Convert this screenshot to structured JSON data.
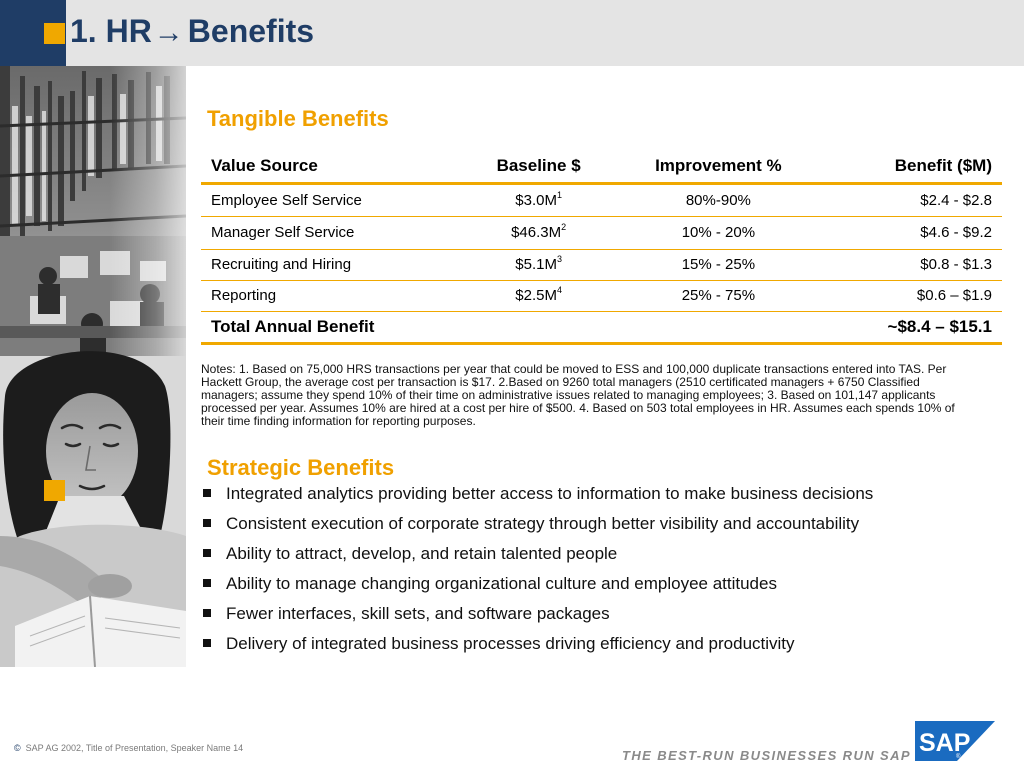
{
  "slide": {
    "number": "1.",
    "title_left": "HR",
    "arrow": "→",
    "title_right": "Benefits"
  },
  "tangible": {
    "heading": "Tangible Benefits",
    "columns": [
      "Value Source",
      "Baseline $",
      "Improvement %",
      "Benefit ($M)"
    ],
    "rows": [
      {
        "source": "Employee Self Service",
        "baseline": "$3.0M",
        "note": "1",
        "improvement": "80%-90%",
        "benefit": "$2.4 - $2.8"
      },
      {
        "source": "Manager Self Service",
        "baseline": "$46.3M",
        "note": "2",
        "improvement": "10% - 20%",
        "benefit": "$4.6 - $9.2"
      },
      {
        "source": "Recruiting and Hiring",
        "baseline": "$5.1M",
        "note": "3",
        "improvement": "15% - 25%",
        "benefit": "$0.8 - $1.3"
      },
      {
        "source": "Reporting",
        "baseline": "$2.5M",
        "note": "4",
        "improvement": "25% - 75%",
        "benefit": "$0.6 – $1.9"
      }
    ],
    "total": {
      "label": "Total Annual Benefit",
      "value": "~$8.4 – $15.1"
    }
  },
  "notes": "Notes: 1. Based on 75,000 HRS transactions per year that could be moved to ESS and 100,000 duplicate transactions entered into TAS. Per Hackett Group, the average cost per transaction is $17. 2.Based on 9260 total managers (2510 certificated managers + 6750 Classified managers; assume they spend 10% of their time on administrative issues related to managing employees; 3. Based on 101,147 applicants processed per year.  Assumes 10% are hired at a cost per hire of $500.  4. Based on 503 total employees in HR.  Assumes each spends 10% of their time finding information for reporting purposes.",
  "strategic": {
    "heading": "Strategic Benefits",
    "items": [
      "Integrated analytics providing better access to information to make business decisions",
      "Consistent execution of corporate strategy through better visibility and accountability",
      "Ability to attract, develop, and retain talented people",
      "Ability to manage changing organizational culture and employee attitudes",
      "Fewer interfaces, skill sets, and software packages",
      "Delivery of integrated business processes driving efficiency and productivity"
    ]
  },
  "footer": {
    "copyright_symbol": "©",
    "copyright_text": "SAP AG 2002, Title of Presentation, Speaker Name  14",
    "tagline": "THE BEST-RUN BUSINESSES RUN SAP",
    "logo_text": "SAP"
  },
  "colors": {
    "accent_orange": "#f0a800",
    "navy": "#1f3d66",
    "sap_blue": "#1a6bc0",
    "title_bar": "#e4e4e4"
  }
}
